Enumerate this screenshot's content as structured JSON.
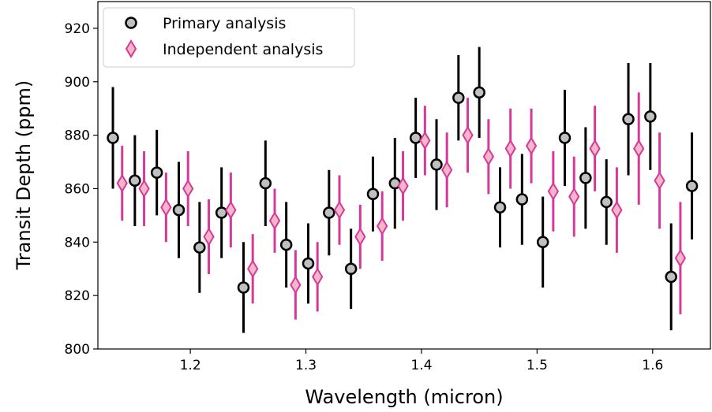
{
  "chart_data": {
    "type": "scatter",
    "xlabel": "Wavelength (micron)",
    "ylabel": "Transit Depth (ppm)",
    "xlim": [
      1.12,
      1.65
    ],
    "ylim": [
      800,
      930
    ],
    "xticks": [
      1.2,
      1.3,
      1.4,
      1.5,
      1.6
    ],
    "yticks": [
      800,
      820,
      840,
      860,
      880,
      900,
      920
    ],
    "legend_position": "top-left",
    "colors": {
      "primary_marker_fill": "#c0c0c0",
      "primary_marker_edge": "#000000",
      "primary_errorbar": "#000000",
      "independent_marker_fill": "#f4b6c8",
      "independent_marker_edge": "#d6399a",
      "independent_errorbar": "#d6399a"
    },
    "series": [
      {
        "name": "Primary analysis",
        "marker": "circle",
        "points": [
          {
            "x": 1.133,
            "y": 879,
            "err": 19
          },
          {
            "x": 1.152,
            "y": 863,
            "err": 17
          },
          {
            "x": 1.171,
            "y": 866,
            "err": 16
          },
          {
            "x": 1.19,
            "y": 852,
            "err": 18
          },
          {
            "x": 1.208,
            "y": 838,
            "err": 17
          },
          {
            "x": 1.227,
            "y": 851,
            "err": 17
          },
          {
            "x": 1.246,
            "y": 823,
            "err": 17
          },
          {
            "x": 1.265,
            "y": 862,
            "err": 16
          },
          {
            "x": 1.283,
            "y": 839,
            "err": 16
          },
          {
            "x": 1.302,
            "y": 832,
            "err": 15
          },
          {
            "x": 1.32,
            "y": 851,
            "err": 16
          },
          {
            "x": 1.339,
            "y": 830,
            "err": 15
          },
          {
            "x": 1.358,
            "y": 858,
            "err": 14
          },
          {
            "x": 1.377,
            "y": 862,
            "err": 17
          },
          {
            "x": 1.395,
            "y": 879,
            "err": 15
          },
          {
            "x": 1.413,
            "y": 869,
            "err": 17
          },
          {
            "x": 1.432,
            "y": 894,
            "err": 16
          },
          {
            "x": 1.45,
            "y": 896,
            "err": 17
          },
          {
            "x": 1.468,
            "y": 853,
            "err": 15
          },
          {
            "x": 1.487,
            "y": 856,
            "err": 17
          },
          {
            "x": 1.505,
            "y": 840,
            "err": 17
          },
          {
            "x": 1.524,
            "y": 879,
            "err": 18
          },
          {
            "x": 1.542,
            "y": 864,
            "err": 19
          },
          {
            "x": 1.56,
            "y": 855,
            "err": 16
          },
          {
            "x": 1.579,
            "y": 886,
            "err": 21
          },
          {
            "x": 1.598,
            "y": 887,
            "err": 20
          },
          {
            "x": 1.616,
            "y": 827,
            "err": 20
          },
          {
            "x": 1.634,
            "y": 861,
            "err": 20
          }
        ]
      },
      {
        "name": "Independent analysis",
        "marker": "diamond",
        "points": [
          {
            "x": 1.141,
            "y": 862,
            "err": 14
          },
          {
            "x": 1.16,
            "y": 860,
            "err": 14
          },
          {
            "x": 1.179,
            "y": 853,
            "err": 13
          },
          {
            "x": 1.198,
            "y": 860,
            "err": 14
          },
          {
            "x": 1.216,
            "y": 842,
            "err": 14
          },
          {
            "x": 1.235,
            "y": 852,
            "err": 14
          },
          {
            "x": 1.254,
            "y": 830,
            "err": 13
          },
          {
            "x": 1.273,
            "y": 848,
            "err": 12
          },
          {
            "x": 1.291,
            "y": 824,
            "err": 13
          },
          {
            "x": 1.31,
            "y": 827,
            "err": 13
          },
          {
            "x": 1.329,
            "y": 852,
            "err": 13
          },
          {
            "x": 1.347,
            "y": 842,
            "err": 12
          },
          {
            "x": 1.366,
            "y": 846,
            "err": 13
          },
          {
            "x": 1.384,
            "y": 861,
            "err": 13
          },
          {
            "x": 1.403,
            "y": 878,
            "err": 13
          },
          {
            "x": 1.422,
            "y": 867,
            "err": 14
          },
          {
            "x": 1.44,
            "y": 880,
            "err": 14
          },
          {
            "x": 1.458,
            "y": 872,
            "err": 14
          },
          {
            "x": 1.477,
            "y": 875,
            "err": 15
          },
          {
            "x": 1.495,
            "y": 876,
            "err": 14
          },
          {
            "x": 1.514,
            "y": 859,
            "err": 15
          },
          {
            "x": 1.532,
            "y": 857,
            "err": 15
          },
          {
            "x": 1.55,
            "y": 875,
            "err": 16
          },
          {
            "x": 1.569,
            "y": 852,
            "err": 16
          },
          {
            "x": 1.588,
            "y": 875,
            "err": 21
          },
          {
            "x": 1.606,
            "y": 863,
            "err": 18
          },
          {
            "x": 1.624,
            "y": 834,
            "err": 21
          }
        ]
      }
    ]
  }
}
